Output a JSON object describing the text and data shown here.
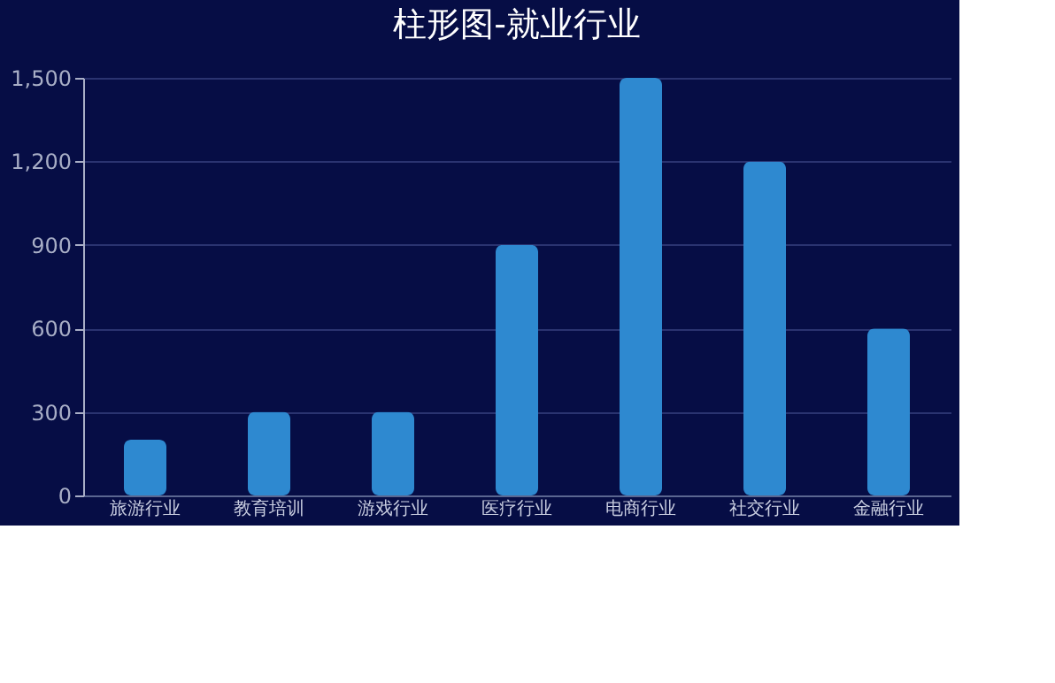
{
  "chart_data": {
    "type": "bar",
    "title": "柱形图-就业行业",
    "categories": [
      "旅游行业",
      "教育培训",
      "游戏行业",
      "医疗行业",
      "电商行业",
      "社交行业",
      "金融行业"
    ],
    "values": [
      200,
      300,
      300,
      900,
      1500,
      1200,
      600
    ],
    "color": "#2e89d0",
    "ylim": [
      0,
      1500
    ],
    "yticks": [
      {
        "value": 0,
        "label": "0"
      },
      {
        "value": 300,
        "label": "300"
      },
      {
        "value": 600,
        "label": "600"
      },
      {
        "value": 900,
        "label": "900"
      },
      {
        "value": 1200,
        "label": "1,200"
      },
      {
        "value": 1500,
        "label": "1,500"
      }
    ],
    "grid": "y"
  }
}
